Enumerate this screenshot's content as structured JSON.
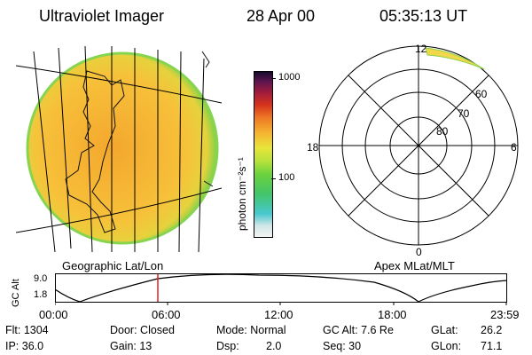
{
  "header": {
    "instrument": "Ultraviolet Imager",
    "date": "28 Apr 00",
    "time": "05:35:13 UT"
  },
  "colorbar": {
    "unit_label": "photon cm⁻²s⁻¹",
    "tick_1000": "1000",
    "tick_100": "100"
  },
  "panels": {
    "left_caption": "Geographic Lat/Lon",
    "right_caption": "Apex MLat/MLT"
  },
  "polar": {
    "mlt_12": "12",
    "mlt_18": "18",
    "mlt_6": "6",
    "mlt_0": "0",
    "lat_60": "60",
    "lat_70": "70",
    "lat_80": "80"
  },
  "altitude_plot": {
    "ylabel": "GC Alt",
    "ytick_top": "9.0",
    "ytick_bottom": "1.8",
    "xticks": [
      "00:00",
      "06:00",
      "12:00",
      "18:00",
      "23:59"
    ]
  },
  "info": {
    "flt": "Flt: 1304",
    "ip": "IP: 36.0",
    "door": "Door: Closed",
    "gain": "Gain: 13",
    "mode": "Mode: Normal",
    "dsp_label": "Dsp:",
    "dsp_value": "2.0",
    "gcalt": "GC Alt: 7.6 Re",
    "seq": "Seq: 30",
    "glat_label": "GLat:",
    "glat_value": "26.2",
    "glon_label": "GLon:",
    "glon_value": "71.1"
  },
  "colors": {
    "earth_fill": "#f3b82f",
    "earth_edge": "#7ad14a",
    "polar_arc": "#f1d74a",
    "marker": "#e0201e"
  }
}
